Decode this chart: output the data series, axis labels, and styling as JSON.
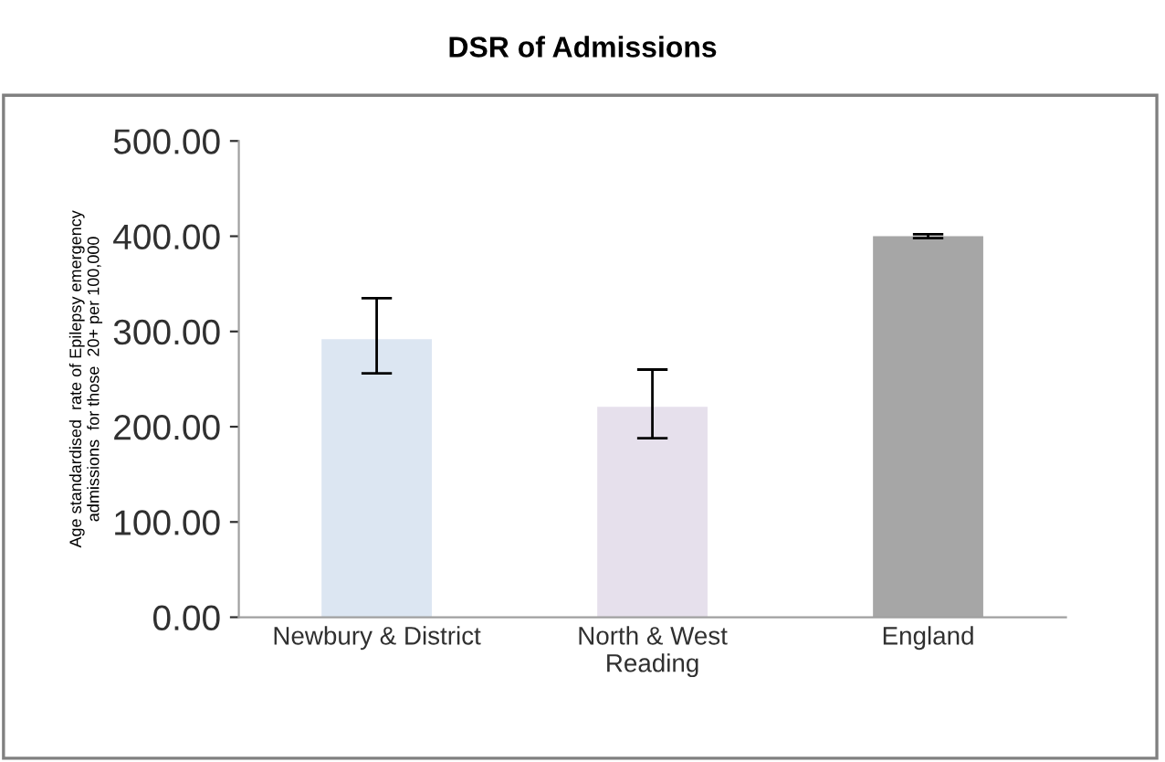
{
  "chart_data": {
    "type": "bar",
    "title": "DSR of Admissions",
    "ylabel": "Age standardised  rate of Epilepsy emergency\nadmissions  for those  20+ per 100,000",
    "categories": [
      "Newbury & District",
      "North & West\nReading",
      "England"
    ],
    "values": [
      292,
      221,
      400
    ],
    "colors": [
      "#dce6f2",
      "#e6e0ec",
      "#a6a6a6"
    ],
    "errors": [
      [
        256,
        335
      ],
      [
        188,
        260
      ],
      [
        398,
        402
      ]
    ],
    "ylim": [
      0,
      500
    ],
    "yticks": [
      {
        "value": 0,
        "label": "0.00"
      },
      {
        "value": 100,
        "label": "100.00"
      },
      {
        "value": 200,
        "label": "200.00"
      },
      {
        "value": 300,
        "label": "300.00"
      },
      {
        "value": 400,
        "label": "400.00"
      },
      {
        "value": 500,
        "label": "500.00"
      }
    ],
    "grid": false,
    "legend": false
  }
}
